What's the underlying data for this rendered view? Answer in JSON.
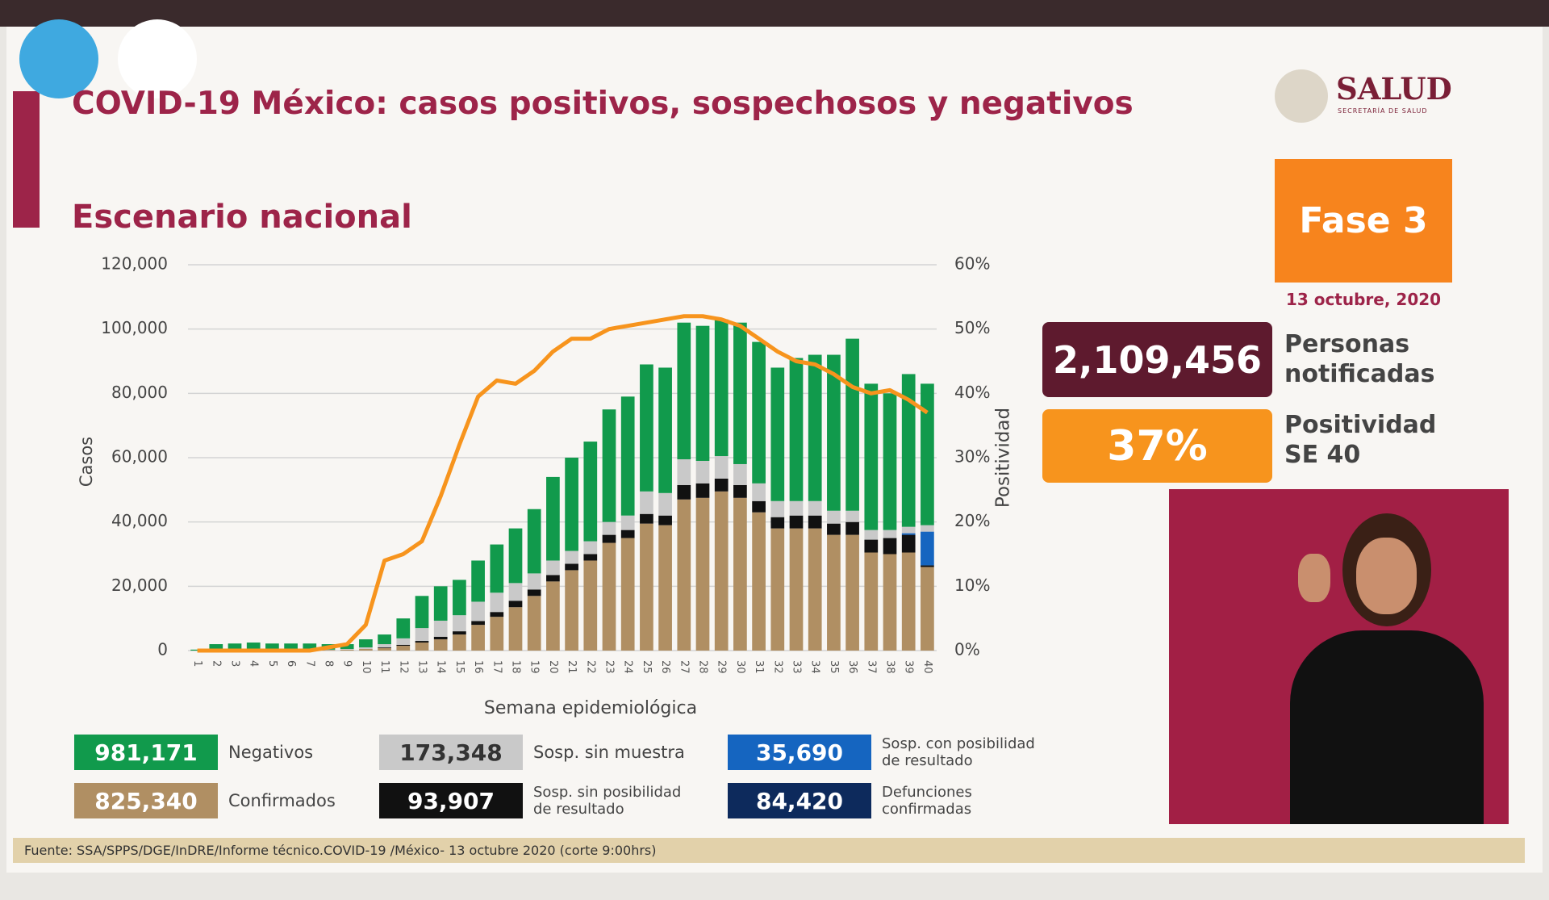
{
  "header": {
    "title": "COVID-19 México: casos positivos, sospechosos y negativos",
    "logo": "SALUD",
    "logo_sub": "SECRETARÍA DE SALUD",
    "phase": "Fase 3",
    "date": "13 octubre, 2020"
  },
  "stats": [
    {
      "value": "2,109,456",
      "label": "Personas notificadas"
    },
    {
      "value": "37%",
      "label": "Positividad SE 40"
    }
  ],
  "source": "Fuente: SSA/SPPS/DGE/InDRE/Informe técnico.COVID-19 /México- 13 octubre 2020 (corte 9:00hrs)",
  "deaths": {
    "name": "Defunciones confirmadas",
    "total": "84,420",
    "color": "#0d2a5c"
  },
  "chart_data": {
    "type": "bar",
    "stacked": true,
    "title": "Escenario nacional",
    "x_label": "Semana epidemiológica",
    "y_label": "Casos",
    "y2_label": "Positividad",
    "categories": [
      "1",
      "2",
      "3",
      "4",
      "5",
      "6",
      "7",
      "8",
      "9",
      "10",
      "11",
      "12",
      "13",
      "14",
      "15",
      "16",
      "17",
      "18",
      "19",
      "20",
      "21",
      "22",
      "23",
      "24",
      "25",
      "26",
      "27",
      "28",
      "29",
      "30",
      "31",
      "32",
      "33",
      "34",
      "35",
      "36",
      "37",
      "38",
      "39",
      "40"
    ],
    "ylim": [
      0,
      120000
    ],
    "yticks": [
      0,
      {
        "value": 20000,
        "label": "20,000"
      },
      {
        "value": 40000,
        "label": "40,000"
      },
      {
        "value": 60000,
        "label": "60,000"
      },
      {
        "value": 80000,
        "label": "80,000"
      },
      {
        "value": 100000,
        "label": "100,000"
      },
      {
        "value": 120000,
        "label": "120,000"
      }
    ],
    "y2lim": [
      0,
      60
    ],
    "y2ticks": [
      {
        "value": 0,
        "label": "0%"
      },
      {
        "value": 10,
        "label": "10%"
      },
      {
        "value": 20,
        "label": "20%"
      },
      {
        "value": 30,
        "label": "30%"
      },
      {
        "value": 40,
        "label": "40%"
      },
      {
        "value": 50,
        "label": "50%"
      },
      {
        "value": 60,
        "label": "60%"
      }
    ],
    "grid": true,
    "series": [
      {
        "name": "Confirmados",
        "total": "825,340",
        "color": "#b08f63",
        "values": [
          0,
          200,
          200,
          200,
          200,
          200,
          200,
          200,
          300,
          500,
          800,
          1500,
          2500,
          3500,
          5000,
          8000,
          10500,
          13500,
          17000,
          21500,
          25000,
          28000,
          33500,
          35000,
          39500,
          39000,
          47000,
          47500,
          49500,
          47500,
          43000,
          38000,
          38000,
          38000,
          36000,
          36000,
          30500,
          30000,
          30500,
          26000
        ]
      },
      {
        "name": "Sosp. sin posibilidad de resultado",
        "total": "93,907",
        "color": "#111111",
        "values": [
          0,
          0,
          0,
          0,
          0,
          0,
          0,
          0,
          0,
          0,
          200,
          300,
          500,
          800,
          1000,
          1200,
          1500,
          2000,
          2000,
          2000,
          2000,
          2000,
          2500,
          2500,
          3000,
          3000,
          4500,
          4500,
          4000,
          4000,
          3500,
          3500,
          4000,
          4000,
          3500,
          4000,
          4000,
          5000,
          5500,
          500
        ]
      },
      {
        "name": "Sosp. con posibilidad de resultado",
        "total": "35,690",
        "color": "#1565c0",
        "values": [
          0,
          0,
          0,
          0,
          0,
          0,
          0,
          0,
          0,
          0,
          0,
          0,
          0,
          0,
          0,
          0,
          0,
          0,
          0,
          0,
          0,
          0,
          0,
          0,
          0,
          0,
          0,
          0,
          0,
          0,
          0,
          0,
          0,
          0,
          0,
          0,
          0,
          0,
          500,
          10500
        ]
      },
      {
        "name": "Sosp. sin muestra",
        "total": "173,348",
        "color": "#c9c9c9",
        "values": [
          0,
          100,
          100,
          100,
          100,
          100,
          100,
          100,
          200,
          500,
          1000,
          2000,
          4000,
          5000,
          5000,
          6000,
          6000,
          5500,
          5000,
          4500,
          4000,
          4000,
          4000,
          4500,
          7000,
          7000,
          8000,
          7000,
          7000,
          6500,
          5500,
          5000,
          4500,
          4500,
          4000,
          3500,
          3000,
          2500,
          2000,
          2000
        ]
      },
      {
        "name": "Negativos",
        "total": "981,171",
        "color": "#119a4c",
        "values": [
          300,
          1700,
          1900,
          2200,
          1900,
          1900,
          1900,
          1700,
          1500,
          2500,
          3000,
          6200,
          10000,
          10700,
          11000,
          12800,
          15000,
          17000,
          20000,
          26000,
          29000,
          31000,
          35000,
          37000,
          39500,
          39000,
          42500,
          42000,
          42500,
          44000,
          44000,
          41500,
          44500,
          45500,
          48500,
          53500,
          45500,
          42500,
          47500,
          44000
        ]
      },
      {
        "type": "line",
        "axis": "y2",
        "color": "#f7941d",
        "values": [
          0,
          0,
          0,
          0,
          0,
          0,
          0,
          0.5,
          1,
          4,
          14,
          15,
          17,
          24,
          32,
          39.5,
          42,
          41.5,
          43.5,
          46.5,
          48.5,
          48.5,
          50,
          50.5,
          51,
          51.5,
          52,
          52,
          51.5,
          50.5,
          48.5,
          46.5,
          45,
          44.5,
          43,
          41,
          40,
          40.5,
          39,
          37
        ]
      }
    ]
  }
}
